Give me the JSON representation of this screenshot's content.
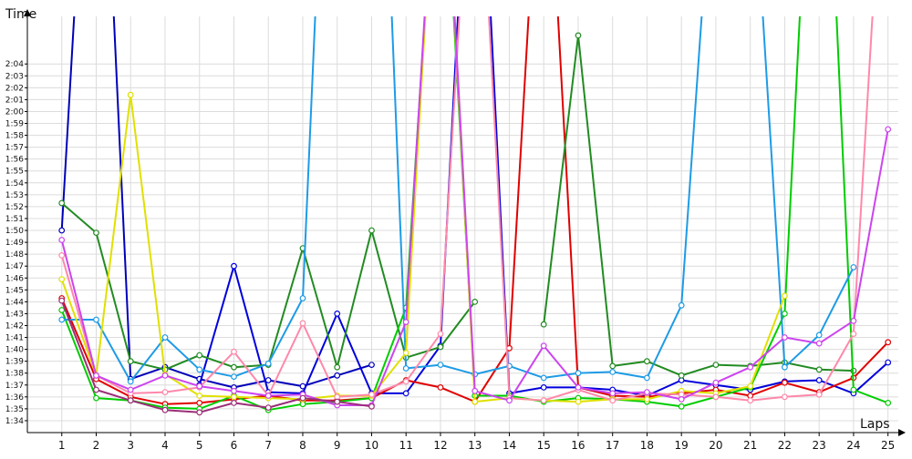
{
  "chart_data": {
    "type": "line",
    "title": "",
    "xlabel": "Laps",
    "ylabel": "Time",
    "grid": true,
    "legend": "none",
    "xlim": [
      0,
      25.3
    ],
    "ylim_seconds": [
      93,
      128
    ],
    "x": [
      1,
      2,
      3,
      4,
      5,
      6,
      7,
      8,
      9,
      10,
      11,
      12,
      13,
      14,
      15,
      16,
      17,
      18,
      19,
      20,
      21,
      22,
      23,
      24,
      25
    ],
    "x_tick_labels": [
      "1",
      "2",
      "3",
      "4",
      "5",
      "6",
      "7",
      "8",
      "9",
      "10",
      "11",
      "12",
      "13",
      "14",
      "15",
      "16",
      "17",
      "18",
      "19",
      "20",
      "21",
      "22",
      "23",
      "24",
      "25"
    ],
    "y_ticks_seconds": [
      94,
      95,
      96,
      97,
      98,
      99,
      100,
      101,
      102,
      103,
      104,
      105,
      106,
      107,
      108,
      109,
      110,
      111,
      112,
      113,
      114,
      115,
      116,
      117,
      118,
      119,
      120,
      121,
      122,
      123,
      124
    ],
    "y_tick_labels": [
      "1:34",
      "1:35",
      "1:36",
      "1:37",
      "1:38",
      "1:39",
      "1:40",
      "1:41",
      "1:42",
      "1:43",
      "1:44",
      "1:45",
      "1:46",
      "1:47",
      "1:48",
      "1:49",
      "1:50",
      "1:51",
      "1:52",
      "1:53",
      "1:54",
      "1:55",
      "1:56",
      "1:57",
      "1:58",
      "1:59",
      "2:00",
      "2:01",
      "2:02",
      "2:03",
      "2:04"
    ],
    "series": [
      {
        "color": "#0000b8",
        "values": [
          110,
          160,
          97.5,
          98.5,
          97.5,
          96.8,
          97.4,
          96.9,
          97.8,
          98.7,
          null,
          null,
          null,
          null,
          null,
          null,
          null,
          null,
          null,
          null,
          null,
          null,
          null,
          null,
          null
        ]
      },
      {
        "color": "#0000dd",
        "values": [
          null,
          null,
          null,
          null,
          97,
          107,
          96.4,
          96.3,
          103,
          96.3,
          96.3,
          100.3,
          155,
          96.3,
          96.8,
          96.8,
          96.6,
          96.1,
          97.4,
          97,
          96.6,
          97.3,
          97.4,
          96.3,
          98.9
        ]
      },
      {
        "color": "#e00000",
        "values": [
          104.3,
          97.5,
          96,
          95.4,
          95.5,
          95.8,
          96.1,
          95.7,
          95.7,
          95.9,
          97.4,
          96.8,
          95.6,
          100.1,
          150,
          96.8,
          96.1,
          96,
          96.3,
          96.6,
          96.1,
          97.2,
          96.4,
          97.6,
          100.6
        ]
      },
      {
        "color": "#228b22",
        "values": [
          112.3,
          109.8,
          99,
          98.3,
          99.5,
          98.5,
          98.7,
          108.5,
          98.5,
          110,
          99.3,
          100.2,
          104,
          null,
          102.1,
          126.4,
          98.6,
          99,
          97.8,
          98.7,
          98.6,
          98.9,
          98.3,
          98.2,
          null
        ]
      },
      {
        "color": "#00cc00",
        "values": [
          103.3,
          95.9,
          95.7,
          95.1,
          95,
          96.1,
          94.9,
          95.4,
          95.6,
          95.9,
          103.5,
          148,
          96.1,
          96.1,
          95.6,
          95.9,
          95.8,
          95.6,
          95.2,
          96,
          96.8,
          103,
          160,
          96.6,
          95.5
        ]
      },
      {
        "color": "#1e9be6",
        "values": [
          102.5,
          102.5,
          97.3,
          101,
          98.3,
          97.7,
          98.8,
          104.3,
          170,
          170,
          98.4,
          98.7,
          97.9,
          98.6,
          97.6,
          98,
          98.1,
          97.6,
          103.7,
          145,
          145,
          98.5,
          101.2,
          106.9,
          null
        ]
      },
      {
        "color": "#e0e000",
        "values": [
          105.9,
          97.8,
          121.4,
          97.9,
          96.1,
          96,
          95.9,
          95.8,
          96.1,
          96.1,
          99.7,
          150,
          95.6,
          95.9,
          95.7,
          95.6,
          95.8,
          95.8,
          96.5,
          96.3,
          96.9,
          104.5,
          null,
          null,
          null
        ]
      },
      {
        "color": "#ff88aa",
        "values": [
          107.9,
          97.8,
          96.3,
          96.4,
          96.8,
          99.8,
          96.1,
          102.2,
          96,
          96.2,
          97.3,
          101.3,
          150,
          95.9,
          95.7,
          96.6,
          95.7,
          96.3,
          96.2,
          96,
          95.7,
          96,
          96.2,
          101.3,
          150
        ]
      },
      {
        "color": "#cc44ee",
        "values": [
          109.2,
          97.8,
          96.6,
          97.8,
          96.9,
          96.5,
          96.1,
          96.2,
          95.3,
          95.3,
          102.3,
          150,
          96.5,
          95.7,
          100.3,
          96.8,
          96.3,
          96.4,
          95.8,
          97.2,
          98.5,
          101,
          100.5,
          102.4,
          118.5
        ]
      },
      {
        "color": "#9b2f78",
        "values": [
          104.1,
          96.6,
          95.7,
          94.9,
          94.7,
          95.5,
          95.1,
          95.9,
          95.6,
          95.2,
          null,
          null,
          null,
          null,
          null,
          null,
          null,
          null,
          null,
          null,
          null,
          null,
          null,
          null,
          null
        ]
      }
    ]
  }
}
